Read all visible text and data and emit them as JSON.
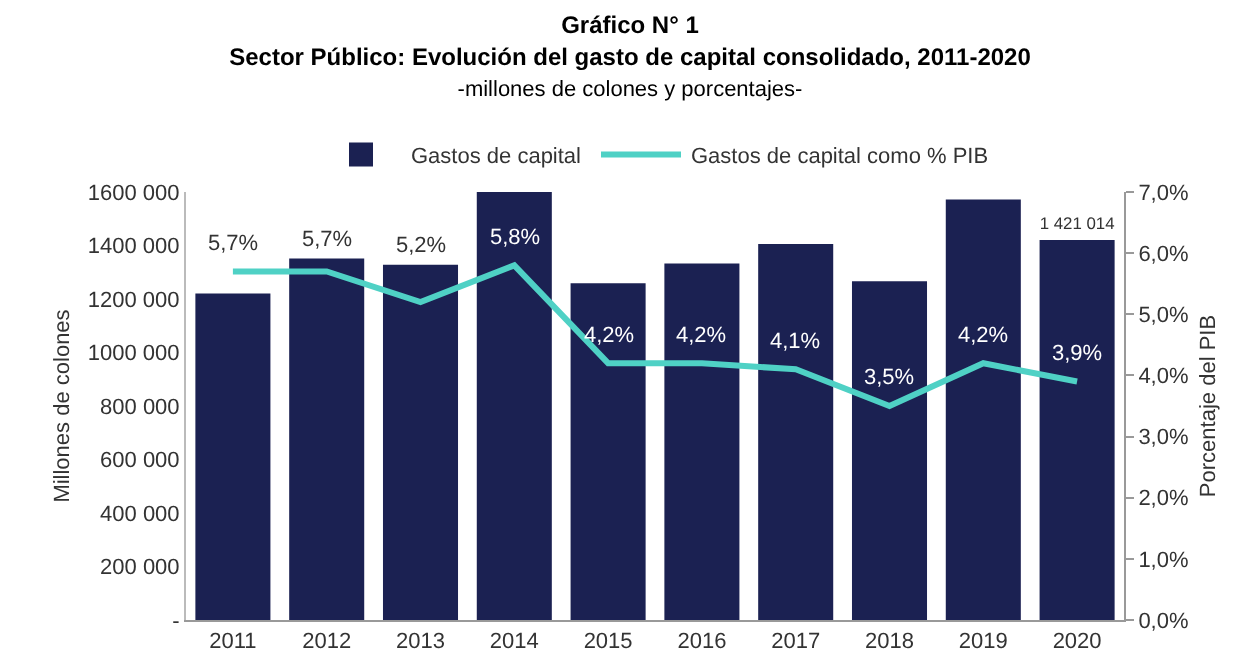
{
  "chart_data": {
    "type": "bar",
    "title": "Gráfico N° 1\nSector Público: Evolución del gasto de capital consolidado, 2011-2020",
    "subtitle": "-millones de colones y porcentajes-",
    "ylabel": "Millones de colones",
    "y2label": "Porcentaje del PIB",
    "categories": [
      "2011",
      "2012",
      "2013",
      "2014",
      "2015",
      "2016",
      "2017",
      "2018",
      "2019",
      "2020"
    ],
    "series": [
      {
        "name": "Gastos de capital",
        "color": "#1b2152",
        "values": [
          1221000,
          1351000,
          1328000,
          1600000,
          1259000,
          1333000,
          1406000,
          1266000,
          1572000,
          1421014
        ],
        "value_labels": [
          null,
          null,
          null,
          null,
          null,
          null,
          null,
          null,
          null,
          "1 421 014"
        ]
      },
      {
        "name": "Gastos de capital como % PIB",
        "type": "line",
        "axis": "y2",
        "color": "#4fd1c5",
        "values": [
          5.7,
          5.7,
          5.2,
          5.8,
          4.2,
          4.2,
          4.1,
          3.5,
          4.2,
          3.9
        ],
        "value_labels": [
          "5,7%",
          "5,7%",
          "5,2%",
          "5,8%",
          "4,2%",
          "4,2%",
          "4,1%",
          "3,5%",
          "4,2%",
          "3,9%"
        ]
      }
    ],
    "ylim": [
      0,
      1600000
    ],
    "yticks": [
      {
        "value": 0,
        "label": "-"
      },
      {
        "value": 200000,
        "label": "200 000"
      },
      {
        "value": 400000,
        "label": "400 000"
      },
      {
        "value": 600000,
        "label": "600 000"
      },
      {
        "value": 800000,
        "label": "800 000"
      },
      {
        "value": 1000000,
        "label": "1000 000"
      },
      {
        "value": 1200000,
        "label": "1200 000"
      },
      {
        "value": 1400000,
        "label": "1400 000"
      },
      {
        "value": 1600000,
        "label": "1600 000"
      }
    ],
    "y2lim": [
      0,
      7
    ],
    "y2ticks": [
      {
        "value": 0,
        "label": "0,0%"
      },
      {
        "value": 1,
        "label": "1,0%"
      },
      {
        "value": 2,
        "label": "2,0%"
      },
      {
        "value": 3,
        "label": "3,0%"
      },
      {
        "value": 4,
        "label": "4,0%"
      },
      {
        "value": 5,
        "label": "5,0%"
      },
      {
        "value": 6,
        "label": "6,0%"
      },
      {
        "value": 7,
        "label": "7,0%"
      }
    ],
    "legend": "top",
    "grid": false,
    "marker": "none",
    "line_style": "solid"
  }
}
